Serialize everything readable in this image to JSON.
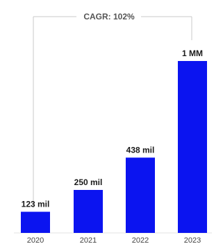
{
  "colors": {
    "bar": "#0b14f0",
    "bracket": "#c8c8c8"
  },
  "chart_data": {
    "type": "bar",
    "categories": [
      "2020",
      "2021",
      "2022",
      "2023"
    ],
    "values": [
      123000,
      250000,
      438000,
      1000000
    ],
    "data_labels": [
      "123 mil",
      "250 mil",
      "438 mil",
      "1 MM"
    ],
    "annotation": "CAGR: 102%",
    "title": "",
    "xlabel": "",
    "ylabel": "",
    "ylim": [
      0,
      1100000
    ],
    "grid": false
  }
}
